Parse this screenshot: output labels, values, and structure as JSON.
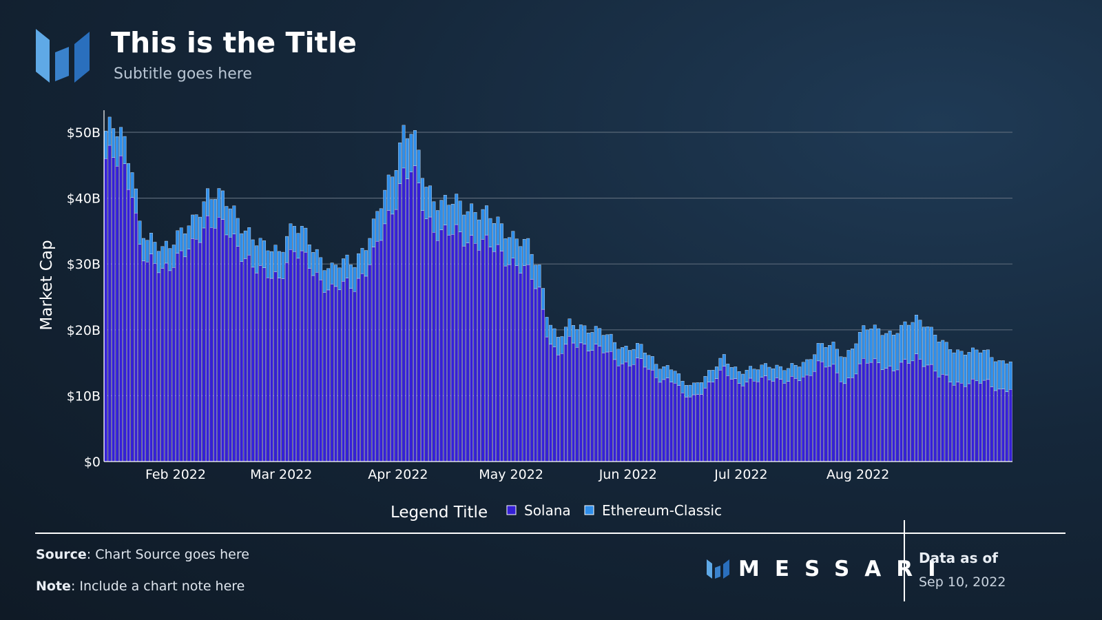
{
  "header": {
    "title": "This is the Title",
    "subtitle": "Subtitle goes here"
  },
  "footer": {
    "source_label": "Source",
    "source_text": "Chart Source goes here",
    "note_label": "Note",
    "note_text": "Include a chart note here",
    "brand": "MESSARI",
    "data_as_of_label": "Data as of",
    "data_as_of_date": "Sep 10, 2022"
  },
  "colors": {
    "solana": "#3520d6",
    "ethereum_classic": "#2f8eea",
    "grid": "#5a6878"
  },
  "chart_data": {
    "type": "bar",
    "stacked": true,
    "x_start": "2022-01-13",
    "x_end": "2022-09-10",
    "x_step": "day",
    "x_ticks": [
      {
        "date": "2022-02-01",
        "label": "Feb 2022"
      },
      {
        "date": "2022-03-01",
        "label": "Mar 2022"
      },
      {
        "date": "2022-04-01",
        "label": "Apr 2022"
      },
      {
        "date": "2022-05-01",
        "label": "May 2022"
      },
      {
        "date": "2022-06-01",
        "label": "Jun 2022"
      },
      {
        "date": "2022-07-01",
        "label": "Jul 2022"
      },
      {
        "date": "2022-08-01",
        "label": "Aug 2022"
      }
    ],
    "ylabel": "Market Cap",
    "y_unit": "B USD",
    "ylim": [
      0,
      52
    ],
    "y_ticks": [
      {
        "value": 0,
        "label": "$0"
      },
      {
        "value": 10,
        "label": "$10B"
      },
      {
        "value": 20,
        "label": "$20B"
      },
      {
        "value": 30,
        "label": "$30B"
      },
      {
        "value": 40,
        "label": "$40B"
      },
      {
        "value": 50,
        "label": "$50B"
      }
    ],
    "grid": true,
    "legend": {
      "title": "Legend Title",
      "placement": "bottom-center"
    },
    "series": [
      {
        "name": "Solana",
        "keyframes": [
          [
            "2022-01-13",
            46
          ],
          [
            "2022-01-17",
            45
          ],
          [
            "2022-01-20",
            42
          ],
          [
            "2022-01-22",
            33
          ],
          [
            "2022-01-24",
            30
          ],
          [
            "2022-01-28",
            29
          ],
          [
            "2022-01-31",
            31
          ],
          [
            "2022-02-05",
            32
          ],
          [
            "2022-02-09",
            37
          ],
          [
            "2022-02-11",
            37
          ],
          [
            "2022-02-16",
            33
          ],
          [
            "2022-02-20",
            31
          ],
          [
            "2022-02-24",
            28
          ],
          [
            "2022-02-28",
            28
          ],
          [
            "2022-03-02",
            31
          ],
          [
            "2022-03-04",
            32
          ],
          [
            "2022-03-09",
            29
          ],
          [
            "2022-03-14",
            26
          ],
          [
            "2022-03-20",
            27
          ],
          [
            "2022-03-25",
            31
          ],
          [
            "2022-03-29",
            37
          ],
          [
            "2022-04-02",
            44
          ],
          [
            "2022-04-04",
            44
          ],
          [
            "2022-04-06",
            41
          ],
          [
            "2022-04-08",
            37
          ],
          [
            "2022-04-12",
            35
          ],
          [
            "2022-04-17",
            34
          ],
          [
            "2022-04-21",
            34
          ],
          [
            "2022-04-26",
            32
          ],
          [
            "2022-04-30",
            31
          ],
          [
            "2022-05-04",
            29
          ],
          [
            "2022-05-08",
            26
          ],
          [
            "2022-05-10",
            20
          ],
          [
            "2022-05-12",
            17
          ],
          [
            "2022-05-13",
            16
          ],
          [
            "2022-05-16",
            18
          ],
          [
            "2022-05-19",
            18
          ],
          [
            "2022-05-24",
            17
          ],
          [
            "2022-05-30",
            15
          ],
          [
            "2022-06-04",
            15
          ],
          [
            "2022-06-08",
            13
          ],
          [
            "2022-06-13",
            12
          ],
          [
            "2022-06-15",
            10
          ],
          [
            "2022-06-18",
            10
          ],
          [
            "2022-06-23",
            12
          ],
          [
            "2022-06-26",
            14
          ],
          [
            "2022-06-30",
            12
          ],
          [
            "2022-07-04",
            12
          ],
          [
            "2022-07-08",
            13
          ],
          [
            "2022-07-13",
            12
          ],
          [
            "2022-07-18",
            13
          ],
          [
            "2022-07-21",
            15
          ],
          [
            "2022-07-25",
            14
          ],
          [
            "2022-07-28",
            12
          ],
          [
            "2022-08-02",
            15
          ],
          [
            "2022-08-06",
            15
          ],
          [
            "2022-08-10",
            14
          ],
          [
            "2022-08-14",
            15
          ],
          [
            "2022-08-16",
            16
          ],
          [
            "2022-08-19",
            15
          ],
          [
            "2022-08-22",
            13
          ],
          [
            "2022-08-26",
            12
          ],
          [
            "2022-08-31",
            12
          ],
          [
            "2022-09-04",
            12
          ],
          [
            "2022-09-07",
            11
          ],
          [
            "2022-09-10",
            11
          ]
        ]
      },
      {
        "name": "Ethereum-Classic",
        "keyframes": [
          [
            "2022-01-13",
            4.2
          ],
          [
            "2022-01-16",
            4.5
          ],
          [
            "2022-01-20",
            3.8
          ],
          [
            "2022-01-25",
            3.2
          ],
          [
            "2022-02-05",
            3.6
          ],
          [
            "2022-02-11",
            4.4
          ],
          [
            "2022-02-20",
            4.2
          ],
          [
            "2022-03-02",
            4.0
          ],
          [
            "2022-03-14",
            3.2
          ],
          [
            "2022-03-24",
            4.0
          ],
          [
            "2022-04-02",
            6.5
          ],
          [
            "2022-04-06",
            5.0
          ],
          [
            "2022-04-12",
            4.5
          ],
          [
            "2022-04-20",
            4.8
          ],
          [
            "2022-04-27",
            4.2
          ],
          [
            "2022-05-05",
            4.0
          ],
          [
            "2022-05-10",
            3.0
          ],
          [
            "2022-05-14",
            2.6
          ],
          [
            "2022-05-20",
            2.8
          ],
          [
            "2022-05-28",
            2.6
          ],
          [
            "2022-06-04",
            2.2
          ],
          [
            "2022-06-14",
            1.8
          ],
          [
            "2022-06-22",
            1.8
          ],
          [
            "2022-07-01",
            1.8
          ],
          [
            "2022-07-15",
            2.0
          ],
          [
            "2022-07-22",
            2.8
          ],
          [
            "2022-07-28",
            4.0
          ],
          [
            "2022-08-02",
            5.0
          ],
          [
            "2022-08-08",
            5.3
          ],
          [
            "2022-08-14",
            5.8
          ],
          [
            "2022-08-18",
            6.0
          ],
          [
            "2022-08-24",
            5.0
          ],
          [
            "2022-09-01",
            4.7
          ],
          [
            "2022-09-06",
            4.4
          ],
          [
            "2022-09-10",
            4.2
          ]
        ]
      }
    ]
  }
}
